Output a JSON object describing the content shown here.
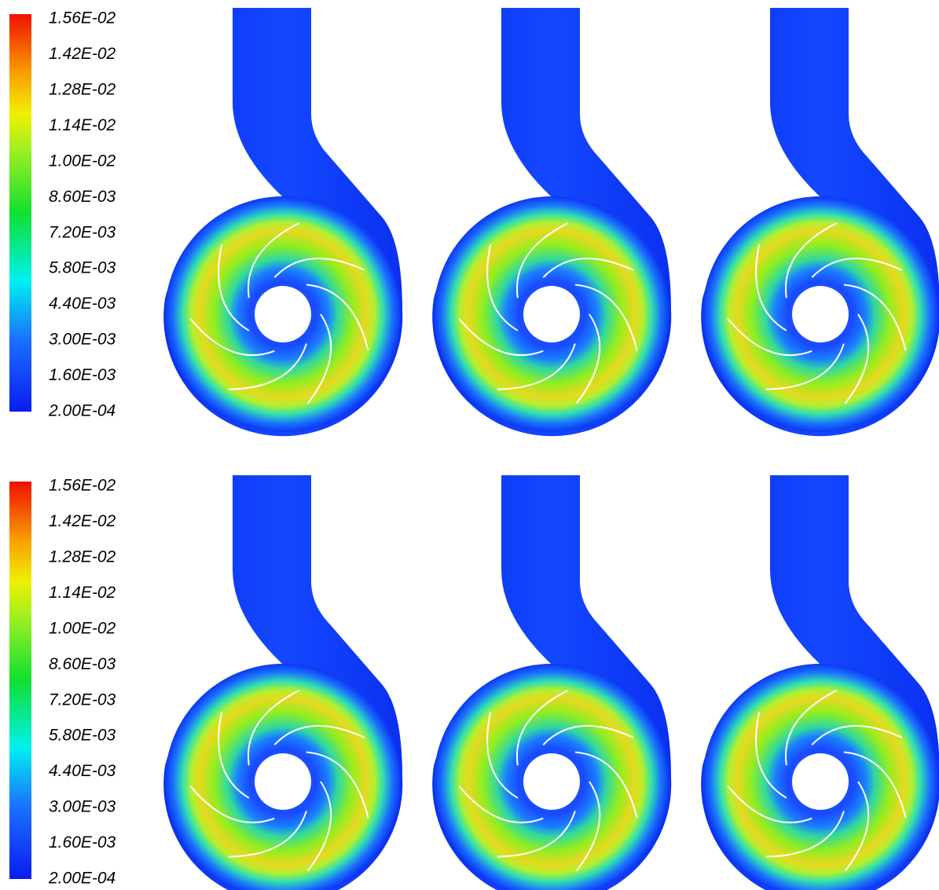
{
  "panels": [
    {
      "legend_labels": [
        "1.56E-02",
        "1.42E-02",
        "1.28E-02",
        "1.14E-02",
        "1.00E-02",
        "8.60E-03",
        "7.20E-03",
        "5.80E-03",
        "4.40E-03",
        "3.00E-03",
        "1.60E-03",
        "2.00E-04"
      ]
    },
    {
      "legend_labels": [
        "1.56E-02",
        "1.42E-02",
        "1.28E-02",
        "1.14E-02",
        "1.00E-02",
        "8.60E-03",
        "7.20E-03",
        "5.80E-03",
        "4.40E-03",
        "3.00E-03",
        "1.60E-03",
        "2.00E-04"
      ]
    }
  ]
}
